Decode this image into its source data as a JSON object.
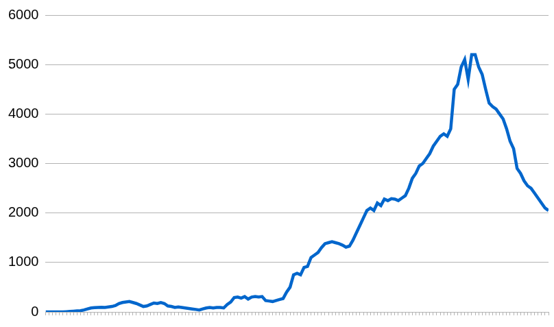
{
  "chart_data": {
    "type": "line",
    "color": "#0066cc",
    "grid": true,
    "tick_labels": "y",
    "ylim": [
      0,
      6000
    ],
    "yticks": [
      0,
      1000,
      2000,
      3000,
      4000,
      5000,
      6000
    ],
    "categories": [
      null,
      null,
      null,
      null,
      null,
      null,
      null,
      null,
      null,
      null,
      null,
      null,
      null,
      null,
      null,
      null,
      null,
      null,
      null,
      null,
      null,
      null,
      null,
      null,
      null,
      null,
      null,
      null,
      null,
      null,
      null,
      null,
      null,
      null,
      null,
      null,
      null,
      null,
      null,
      null,
      null,
      null,
      null,
      null,
      null,
      null,
      null,
      null,
      null,
      null,
      null,
      null,
      null,
      null,
      null,
      null,
      null,
      null,
      null,
      null,
      null,
      null,
      null,
      null,
      null,
      null,
      null,
      null,
      null,
      null,
      null,
      null,
      null,
      null,
      null,
      null,
      null,
      null,
      null,
      null,
      null,
      null,
      null,
      null,
      null,
      null,
      null,
      null,
      null,
      null,
      null,
      null,
      null,
      null,
      null,
      null,
      null,
      null,
      null,
      null,
      null,
      null,
      null,
      null,
      null,
      null,
      null,
      null,
      null,
      null,
      null,
      null,
      null,
      null,
      null,
      null,
      null,
      null,
      null,
      null,
      null,
      null,
      null,
      null,
      null,
      null,
      null,
      null,
      null,
      null,
      null,
      null,
      null,
      null,
      null,
      null,
      null,
      null,
      null,
      null,
      null,
      null,
      null,
      null,
      null
    ],
    "values": [
      0,
      0,
      0,
      0,
      0,
      0,
      5,
      10,
      15,
      20,
      25,
      40,
      60,
      80,
      85,
      90,
      95,
      90,
      100,
      110,
      130,
      170,
      190,
      200,
      210,
      190,
      170,
      140,
      110,
      120,
      150,
      180,
      170,
      190,
      170,
      120,
      110,
      90,
      100,
      90,
      80,
      70,
      60,
      50,
      40,
      60,
      80,
      90,
      80,
      90,
      90,
      80,
      150,
      200,
      290,
      300,
      280,
      310,
      260,
      300,
      310,
      300,
      310,
      230,
      220,
      210,
      230,
      250,
      270,
      400,
      500,
      750,
      780,
      750,
      900,
      920,
      1100,
      1150,
      1200,
      1300,
      1380,
      1400,
      1420,
      1400,
      1380,
      1350,
      1310,
      1330,
      1450,
      1600,
      1750,
      1900,
      2050,
      2100,
      2050,
      2200,
      2150,
      2280,
      2250,
      2290,
      2280,
      2250,
      2300,
      2350,
      2500,
      2700,
      2800,
      2950,
      3000,
      3100,
      3200,
      3350,
      3450,
      3550,
      3600,
      3550,
      3700,
      4500,
      4600,
      4950,
      5100,
      4700,
      5200,
      5200,
      4950,
      4800,
      4500,
      4220,
      4150,
      4100,
      4000,
      3900,
      3700,
      3450,
      3300,
      2900,
      2800,
      2650,
      2550,
      2500,
      2400,
      2300,
      2200,
      2100,
      2050
    ]
  }
}
